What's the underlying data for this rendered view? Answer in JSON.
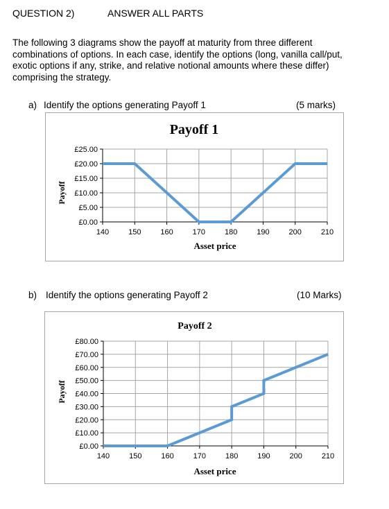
{
  "header": {
    "question": "QUESTION 2)",
    "instruction": "ANSWER ALL PARTS"
  },
  "intro": {
    "text": "The following 3 diagrams show the payoff at maturity from three different combinations of options. In each case, identify the options (long, vanilla call/put, exotic options if any, strike, and relative notional amounts where these differ) comprising the strategy."
  },
  "parts": [
    {
      "label": "a)",
      "text": "Identify the options generating Payoff 1",
      "marks": "(5 marks)"
    },
    {
      "label": "b)",
      "text": "Identify the options generating Payoff 2",
      "marks": "(10 Marks)"
    }
  ],
  "colors": {
    "line": "#5b9bd5",
    "grid": "#a6a6a6",
    "axis": "#000000"
  },
  "chart_data": [
    {
      "type": "line",
      "title": "Payoff 1",
      "xlabel": "Asset price",
      "ylabel": "Payoff",
      "xlim": [
        140,
        210
      ],
      "ylim": [
        0,
        25
      ],
      "x_ticks": [
        140,
        150,
        160,
        170,
        180,
        190,
        200,
        210
      ],
      "x_tick_labels": [
        "140",
        "150",
        "160",
        "170",
        "180",
        "190",
        "200",
        "210"
      ],
      "y_ticks": [
        0,
        5,
        10,
        15,
        20,
        25
      ],
      "y_tick_labels": [
        "£0.00",
        "£5.00",
        "£10.00",
        "£15.00",
        "£20.00",
        "£25.00"
      ],
      "grid": true,
      "series": [
        {
          "x": [
            140,
            150,
            170,
            180,
            200,
            210
          ],
          "y": [
            20,
            20,
            0,
            0,
            20,
            20
          ]
        }
      ]
    },
    {
      "type": "line",
      "title": "Payoff 2",
      "xlabel": "Asset price",
      "ylabel": "Payoff",
      "xlim": [
        140,
        210
      ],
      "ylim": [
        0,
        80
      ],
      "x_ticks": [
        140,
        150,
        160,
        170,
        180,
        190,
        200,
        210
      ],
      "x_tick_labels": [
        "140",
        "150",
        "160",
        "170",
        "180",
        "190",
        "200",
        "210"
      ],
      "y_ticks": [
        0,
        10,
        20,
        30,
        40,
        50,
        60,
        70,
        80
      ],
      "y_tick_labels": [
        "£0.00",
        "£10.00",
        "£20.00",
        "£30.00",
        "£40.00",
        "£50.00",
        "£60.00",
        "£70.00",
        "£80.00"
      ],
      "grid": true,
      "series": [
        {
          "x": [
            140,
            160,
            180,
            180,
            190,
            190,
            210
          ],
          "y": [
            0,
            0,
            20,
            30,
            40,
            50,
            70
          ]
        }
      ]
    }
  ]
}
